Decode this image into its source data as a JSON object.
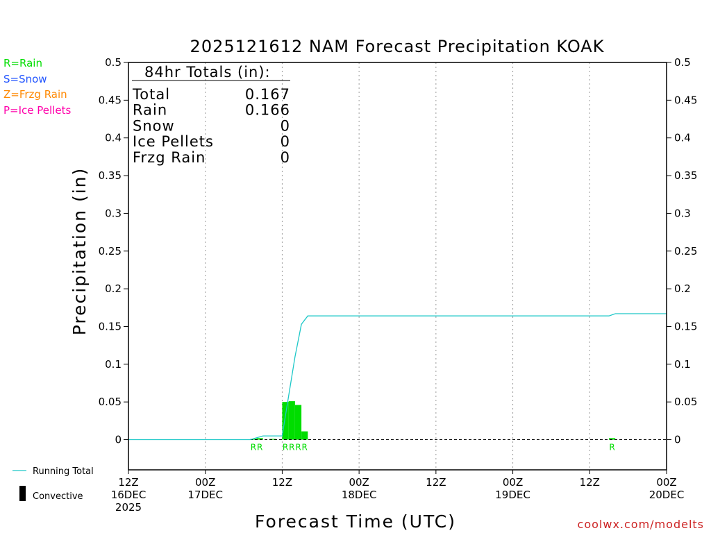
{
  "chart_data": {
    "type": "bar",
    "title": "2025121612 NAM Forecast Precipitation KOAK",
    "xlabel": "Forecast Time (UTC)",
    "ylabel": "Precipitation (in)",
    "ylim": [
      -0.04,
      0.5
    ],
    "yticks": [
      "0.5",
      "0.45",
      "0.4",
      "0.35",
      "0.3",
      "0.25",
      "0.2",
      "0.15",
      "0.1",
      "0.05",
      "0"
    ],
    "xlim_hours": [
      0,
      84
    ],
    "xticks": [
      {
        "hour": 0,
        "line1": "12Z",
        "line2": "16DEC",
        "line3": "2025"
      },
      {
        "hour": 12,
        "line1": "00Z",
        "line2": "17DEC",
        "line3": ""
      },
      {
        "hour": 24,
        "line1": "12Z",
        "line2": "",
        "line3": ""
      },
      {
        "hour": 36,
        "line1": "00Z",
        "line2": "18DEC",
        "line3": ""
      },
      {
        "hour": 48,
        "line1": "12Z",
        "line2": "",
        "line3": ""
      },
      {
        "hour": 60,
        "line1": "00Z",
        "line2": "19DEC",
        "line3": ""
      },
      {
        "hour": 72,
        "line1": "12Z",
        "line2": "",
        "line3": ""
      },
      {
        "hour": 84,
        "line1": "00Z",
        "line2": "20DEC",
        "line3": ""
      }
    ],
    "precip_bars": [
      {
        "hour": 20,
        "value": 0.001
      },
      {
        "hour": 21,
        "value": 0.002
      },
      {
        "hour": 23,
        "value": 0.001
      },
      {
        "hour": 25,
        "value": 0.05
      },
      {
        "hour": 26,
        "value": 0.051
      },
      {
        "hour": 27,
        "value": 0.046
      },
      {
        "hour": 28,
        "value": 0.011
      },
      {
        "hour": 76,
        "value": 0.002
      }
    ],
    "ptype_labels": [
      {
        "hour": 20,
        "label": "R"
      },
      {
        "hour": 21,
        "label": "R"
      },
      {
        "hour": 25,
        "label": "R"
      },
      {
        "hour": 26,
        "label": "R"
      },
      {
        "hour": 27,
        "label": "R"
      },
      {
        "hour": 28,
        "label": "R"
      },
      {
        "hour": 76,
        "label": "R"
      }
    ],
    "running_total": {
      "name": "Running Total",
      "color": "#1ec8c8",
      "points": [
        [
          0,
          0
        ],
        [
          19,
          0
        ],
        [
          21,
          0.005
        ],
        [
          23,
          0.005
        ],
        [
          24,
          0.005
        ],
        [
          25,
          0.058
        ],
        [
          26,
          0.11
        ],
        [
          27,
          0.153
        ],
        [
          28,
          0.164
        ],
        [
          75,
          0.164
        ],
        [
          76,
          0.167
        ],
        [
          84,
          0.167
        ]
      ]
    },
    "bar_color": "#00dd00",
    "convective_color": "#000000"
  },
  "legend": {
    "rain": {
      "text": "R=Rain",
      "color": "#00dd00"
    },
    "snow": {
      "text": "S=Snow",
      "color": "#2255ff"
    },
    "frzg": {
      "text": "Z=Frzg Rain",
      "color": "#ff8800"
    },
    "ice": {
      "text": "P=Ice Pellets",
      "color": "#ff00aa"
    }
  },
  "totals": {
    "header": "84hr Totals (in):",
    "rows": [
      {
        "label": "Total",
        "value": "0.167"
      },
      {
        "label": "Rain",
        "value": "0.166"
      },
      {
        "label": "Snow",
        "value": "0"
      },
      {
        "label": "Ice Pellets",
        "value": "0"
      },
      {
        "label": "Frzg Rain",
        "value": "0"
      }
    ]
  },
  "footer": {
    "running_total_label": "Running Total",
    "convective_label": "Convective",
    "credit": "coolwx.com/modelts"
  }
}
